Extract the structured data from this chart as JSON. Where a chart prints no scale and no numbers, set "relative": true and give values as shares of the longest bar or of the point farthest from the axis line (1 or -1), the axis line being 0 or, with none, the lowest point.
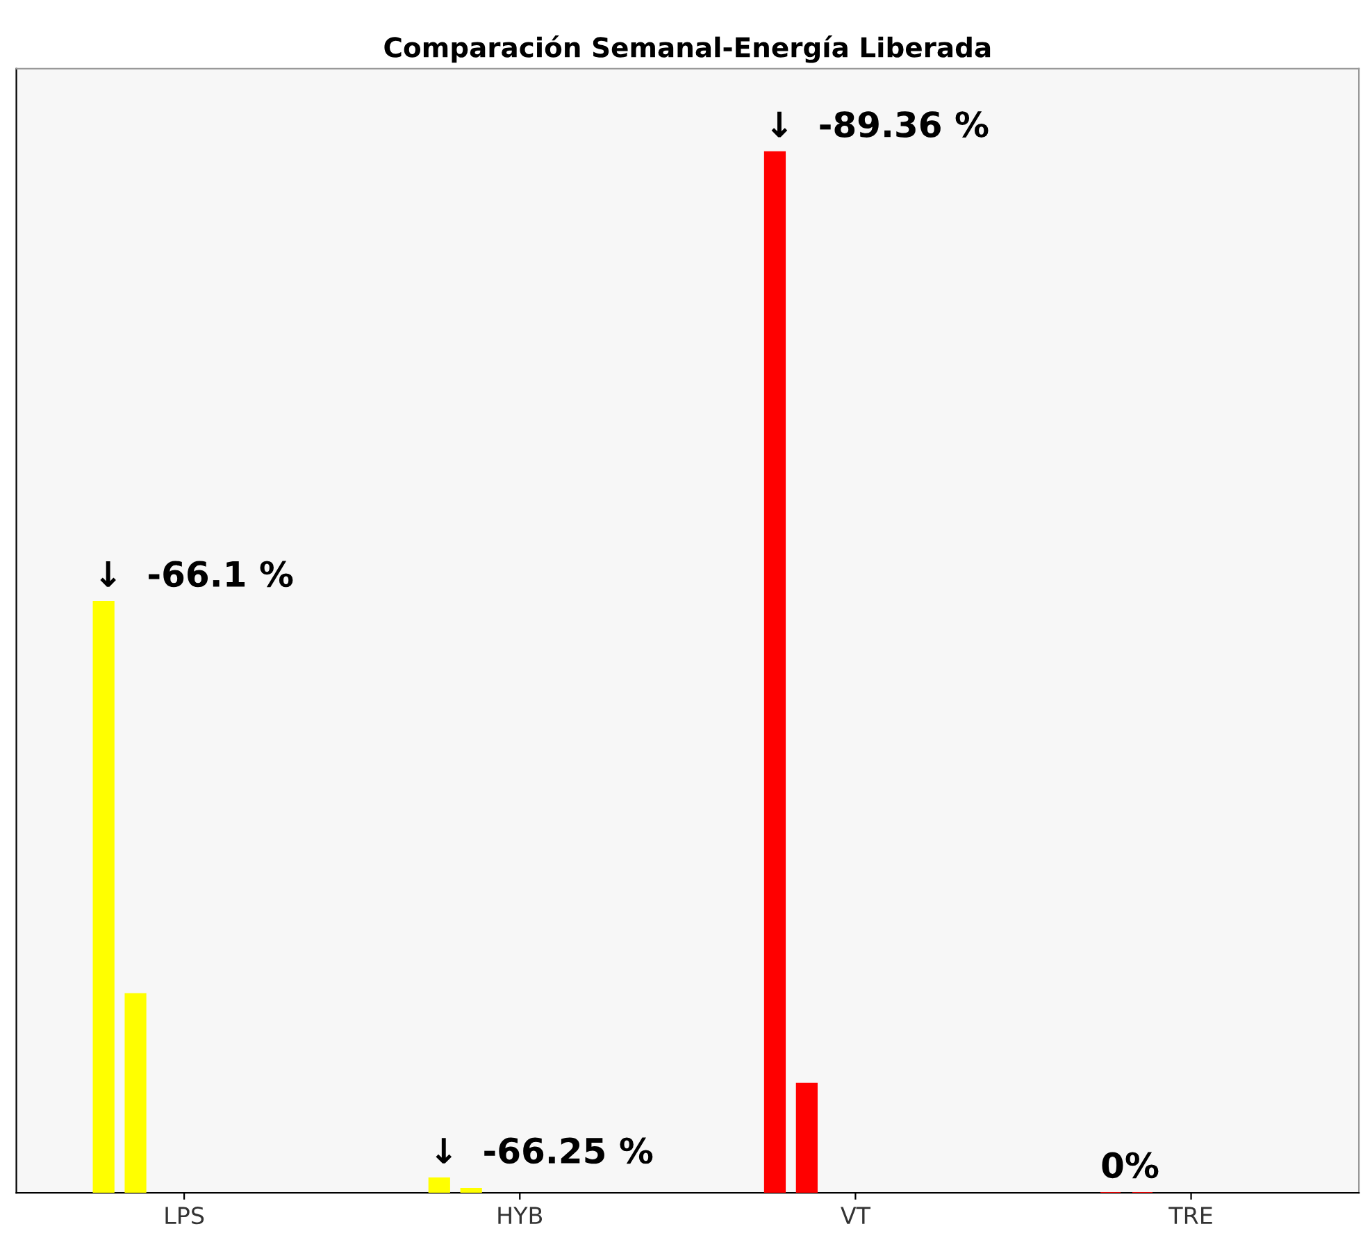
{
  "chart_data": {
    "type": "bar",
    "title": "Comparación Semanal-Energía Liberada",
    "relative": true,
    "categories": [
      "LPS",
      "HYB",
      "VT",
      "TRE"
    ],
    "series": [
      {
        "colors": [
          "#ffff00",
          "#ffff00",
          "#ff0000",
          "#ff0000"
        ],
        "values": [
          0.568,
          0.014,
          1,
          0
        ]
      },
      {
        "colors": [
          "#ffff00",
          "#ffff00",
          "#ff0000",
          "#ff0000"
        ],
        "values": [
          0.191,
          0.004,
          0.105,
          0
        ]
      }
    ],
    "annotations": [
      "↓  -66.1 %",
      "↓  -66.25 %",
      "↓  -89.36 %",
      "0%"
    ]
  }
}
